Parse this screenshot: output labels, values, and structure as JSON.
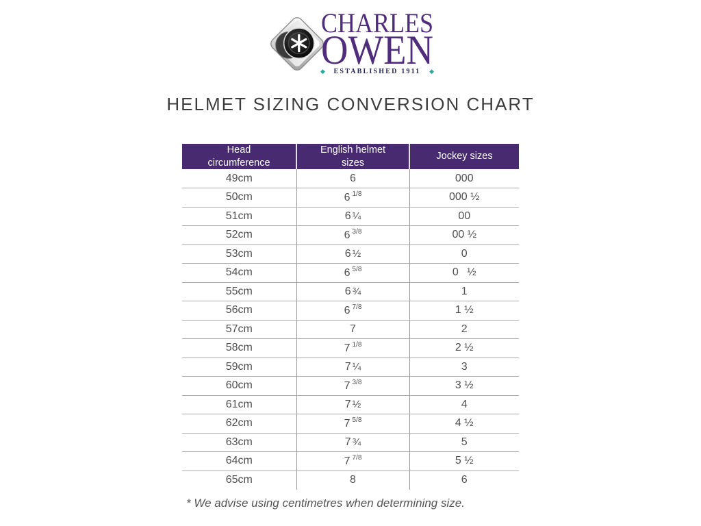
{
  "brand": {
    "name_line1": "CHARLES",
    "name_line2": "OWEN",
    "established": "ESTABLISHED 1911",
    "diamond_icon_glyph": "◆",
    "colors": {
      "purple": "#4f2c7c",
      "teal": "#2aa79e",
      "navy": "#232350",
      "header_bg": "#482a70"
    }
  },
  "title": "HELMET SIZING CONVERSION CHART",
  "table": {
    "headers": [
      {
        "line1": "Head",
        "line2": "circumference"
      },
      {
        "line1": "English helmet",
        "line2": "sizes"
      },
      {
        "line1": "Jockey sizes",
        "line2": ""
      }
    ],
    "rows": [
      {
        "head_circumference": "49cm",
        "english_whole": "6",
        "english_frac": "",
        "frac_sup": false,
        "jockey": "000"
      },
      {
        "head_circumference": "50cm",
        "english_whole": "6",
        "english_frac": "1/8",
        "frac_sup": true,
        "jockey": "000 ½"
      },
      {
        "head_circumference": "51cm",
        "english_whole": "6",
        "english_frac": "¼",
        "frac_sup": false,
        "jockey": "00"
      },
      {
        "head_circumference": "52cm",
        "english_whole": "6",
        "english_frac": "3/8",
        "frac_sup": true,
        "jockey": "00 ½"
      },
      {
        "head_circumference": "53cm",
        "english_whole": "6",
        "english_frac": "½",
        "frac_sup": false,
        "jockey": "0"
      },
      {
        "head_circumference": "54cm",
        "english_whole": "6",
        "english_frac": "5/8",
        "frac_sup": true,
        "jockey": "0  ½"
      },
      {
        "head_circumference": "55cm",
        "english_whole": "6",
        "english_frac": "¾",
        "frac_sup": false,
        "jockey": "1"
      },
      {
        "head_circumference": "56cm",
        "english_whole": "6",
        "english_frac": "7/8",
        "frac_sup": true,
        "jockey": "1 ½"
      },
      {
        "head_circumference": "57cm",
        "english_whole": "7",
        "english_frac": "",
        "frac_sup": false,
        "jockey": "2"
      },
      {
        "head_circumference": "58cm",
        "english_whole": "7",
        "english_frac": "1/8",
        "frac_sup": true,
        "jockey": "2 ½"
      },
      {
        "head_circumference": "59cm",
        "english_whole": "7",
        "english_frac": "¼",
        "frac_sup": false,
        "jockey": "3"
      },
      {
        "head_circumference": "60cm",
        "english_whole": "7",
        "english_frac": "3/8",
        "frac_sup": true,
        "jockey": "3 ½"
      },
      {
        "head_circumference": "61cm",
        "english_whole": "7",
        "english_frac": "½",
        "frac_sup": false,
        "jockey": "4"
      },
      {
        "head_circumference": "62cm",
        "english_whole": "7",
        "english_frac": "5/8",
        "frac_sup": true,
        "jockey": "4 ½"
      },
      {
        "head_circumference": "63cm",
        "english_whole": "7",
        "english_frac": "¾",
        "frac_sup": false,
        "jockey": "5"
      },
      {
        "head_circumference": "64cm",
        "english_whole": "7",
        "english_frac": "7/8",
        "frac_sup": true,
        "jockey": "5 ½"
      },
      {
        "head_circumference": "65cm",
        "english_whole": "8",
        "english_frac": "",
        "frac_sup": false,
        "jockey": "6"
      }
    ]
  },
  "footnote": "* We advise using centimetres when determining size."
}
